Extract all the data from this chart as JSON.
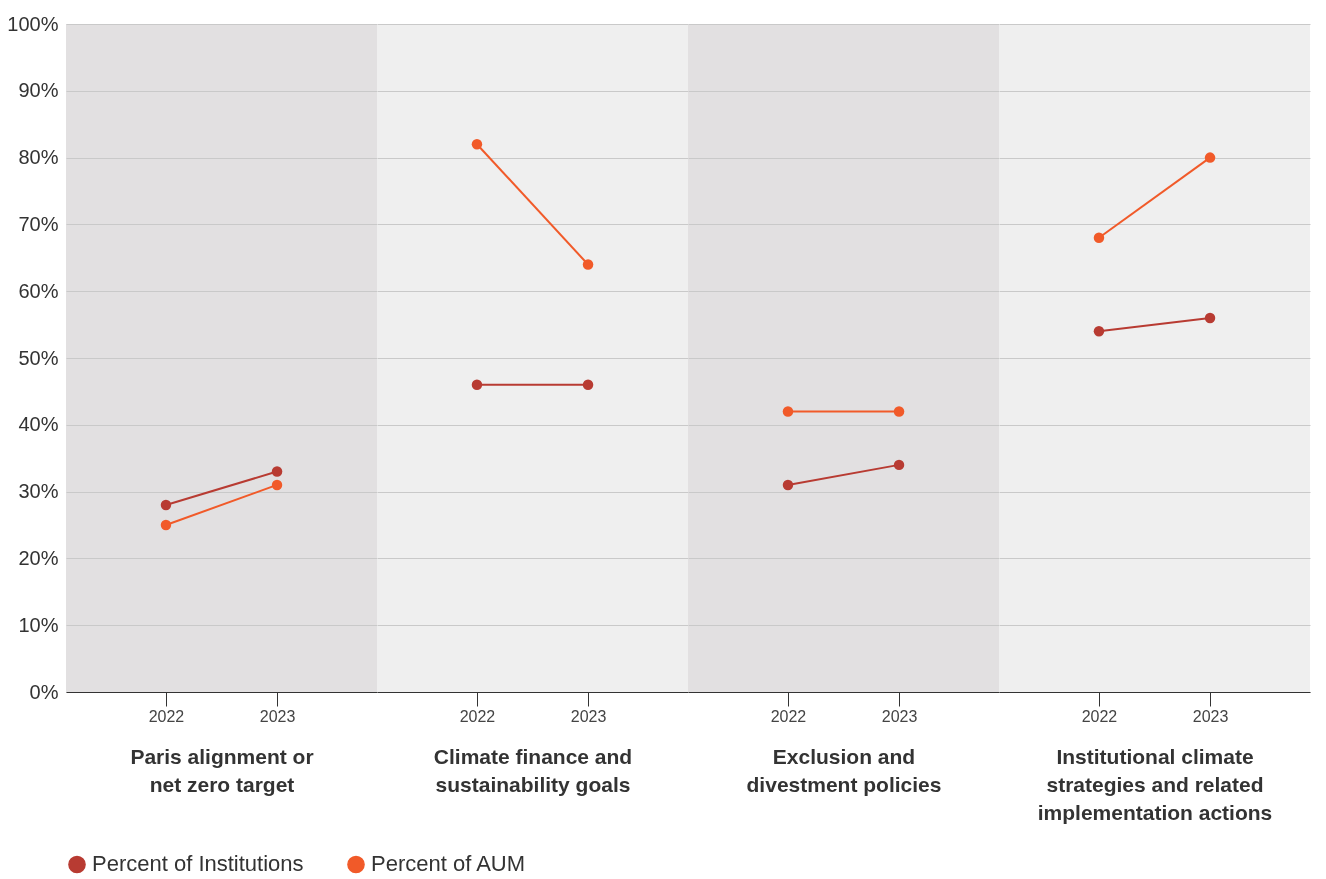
{
  "chart_data": [
    {
      "type": "line",
      "xlabel": "Paris alignment or\nnet zero target",
      "categories": [
        "2022",
        "2023"
      ],
      "series": [
        {
          "name": "Percent of Institutions",
          "color": "#b83b32",
          "values": [
            28,
            33
          ]
        },
        {
          "name": "Percent of AUM",
          "color": "#f15a29",
          "values": [
            25,
            31
          ]
        }
      ],
      "ylim": [
        0,
        100
      ],
      "yticks": [
        {
          "value": 0,
          "label": "0%"
        },
        {
          "value": 10,
          "label": "10%"
        },
        {
          "value": 20,
          "label": "20%"
        },
        {
          "value": 30,
          "label": "30%"
        },
        {
          "value": 40,
          "label": "40%"
        },
        {
          "value": 50,
          "label": "50%"
        },
        {
          "value": 60,
          "label": "60%"
        },
        {
          "value": 70,
          "label": "70%"
        },
        {
          "value": 80,
          "label": "80%"
        },
        {
          "value": 90,
          "label": "90%"
        },
        {
          "value": 100,
          "label": "100%"
        }
      ],
      "grid": "y",
      "legend": "bottom",
      "marker": "circle"
    },
    {
      "type": "line",
      "xlabel": "Climate finance and\nsustainability goals",
      "categories": [
        "2022",
        "2023"
      ],
      "series": [
        {
          "name": "Percent of Institutions",
          "color": "#b83b32",
          "values": [
            46,
            46
          ]
        },
        {
          "name": "Percent of AUM",
          "color": "#f15a29",
          "values": [
            82,
            64
          ]
        }
      ],
      "ylim": [
        0,
        100
      ],
      "yticks": [
        0,
        10,
        20,
        30,
        40,
        50,
        60,
        70,
        80,
        90,
        100
      ],
      "grid": "y",
      "marker": "circle",
      "tick_labels": "x"
    },
    {
      "type": "line",
      "xlabel": "Exclusion and\ndivestment policies",
      "categories": [
        "2022",
        "2023"
      ],
      "series": [
        {
          "name": "Percent of Institutions",
          "color": "#b83b32",
          "values": [
            31,
            34
          ]
        },
        {
          "name": "Percent of AUM",
          "color": "#f15a29",
          "values": [
            42,
            42
          ]
        }
      ],
      "ylim": [
        0,
        100
      ],
      "yticks": [
        0,
        10,
        20,
        30,
        40,
        50,
        60,
        70,
        80,
        90,
        100
      ],
      "grid": "y",
      "marker": "circle",
      "tick_labels": "x"
    },
    {
      "type": "line",
      "xlabel": "Institutional climate\nstrategies and related\nimplementation actions",
      "categories": [
        "2022",
        "2023"
      ],
      "series": [
        {
          "name": "Percent of Institutions",
          "color": "#b83b32",
          "values": [
            54,
            56
          ]
        },
        {
          "name": "Percent of AUM",
          "color": "#f15a29",
          "values": [
            68,
            80
          ]
        }
      ],
      "ylim": [
        0,
        100
      ],
      "yticks": [
        0,
        10,
        20,
        30,
        40,
        50,
        60,
        70,
        80,
        90,
        100
      ],
      "grid": "y",
      "marker": "circle",
      "tick_labels": "x"
    }
  ]
}
